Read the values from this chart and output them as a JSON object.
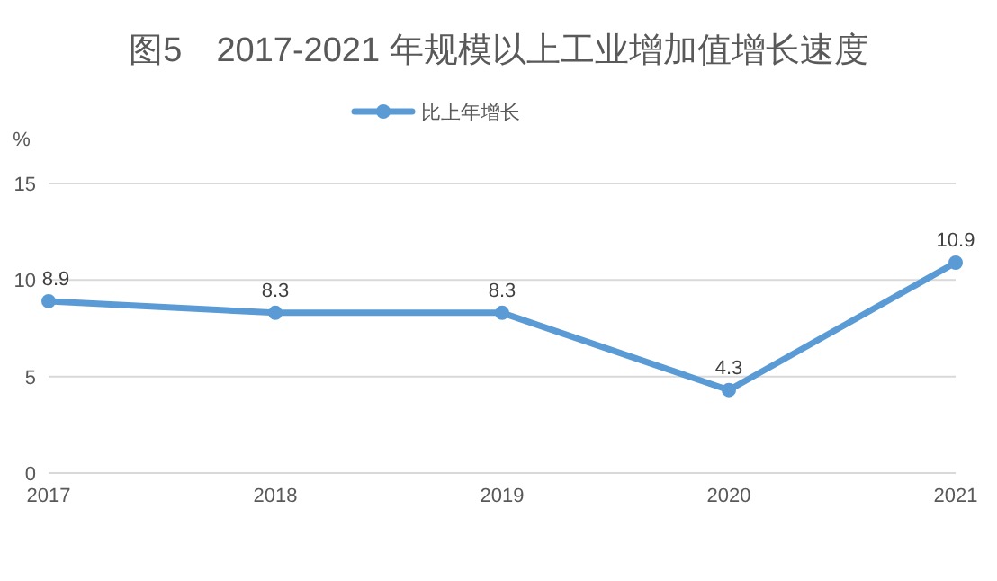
{
  "chart_data": {
    "type": "line",
    "title": "图5　2017-2021 年规模以上工业增加值增长速度",
    "ylabel": "%",
    "categories": [
      "2017",
      "2018",
      "2019",
      "2020",
      "2021"
    ],
    "series": [
      {
        "name": "比上年增长",
        "color": "#5b9bd5",
        "values": [
          8.9,
          8.3,
          8.3,
          4.3,
          10.9
        ]
      }
    ],
    "ylim": [
      0,
      15
    ],
    "yticks": [
      0,
      5,
      10,
      15
    ],
    "grid": "y",
    "legend": "top",
    "marker": "circle",
    "line_style": "solid",
    "data_labels": true
  }
}
